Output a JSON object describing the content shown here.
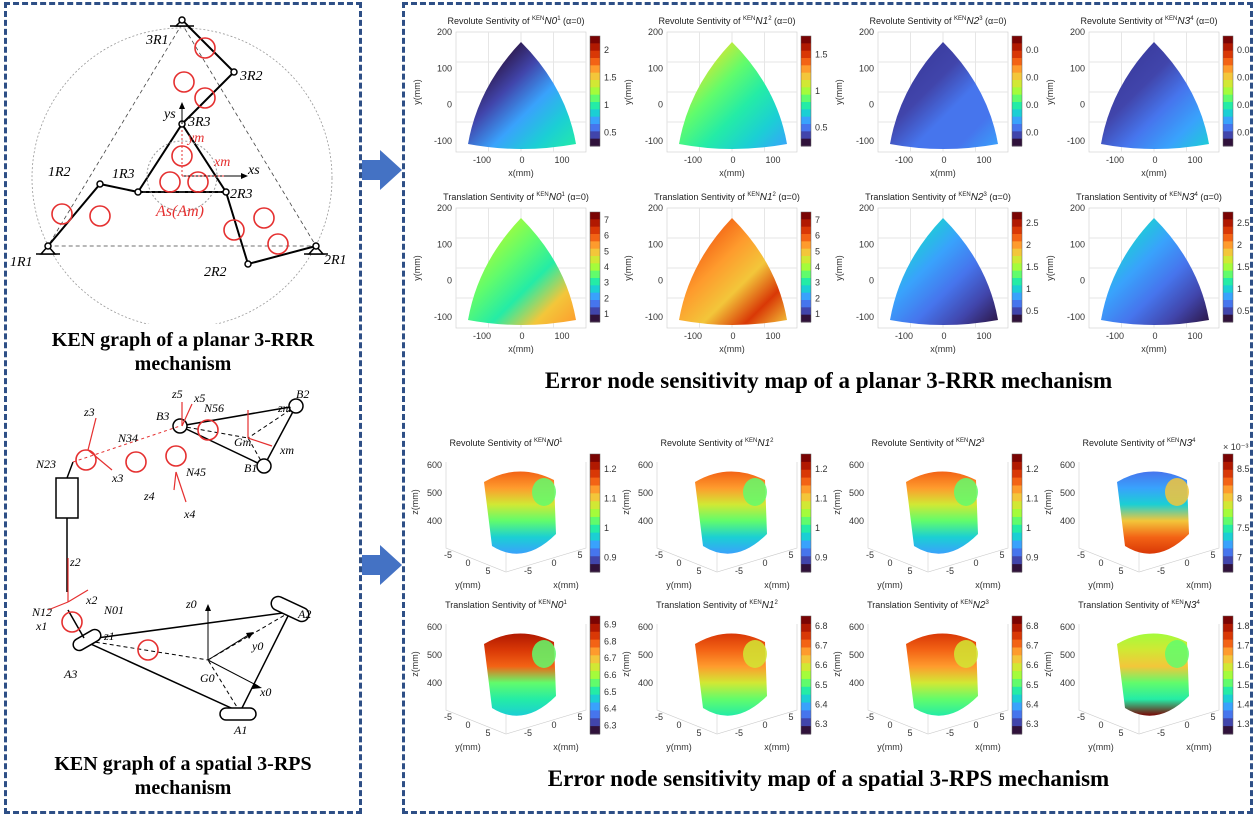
{
  "captions": {
    "left_top": "KEN graph of a planar 3-RRR mechanism",
    "left_bottom": "KEN graph of a spatial 3-RPS mechanism",
    "right_top": "Error node sensitivity map of a planar 3-RRR mechanism",
    "right_bottom": "Error node sensitivity map of a spatial 3-RPS mechanism"
  },
  "colors": {
    "border": "#2e4f86",
    "arrow": "#4472c4",
    "node": "#e53030",
    "dark": "#2b1442",
    "red": "#8b1010"
  },
  "planar_labels": {
    "R3_top": "3R1",
    "R2_top": "3R2",
    "R3_mid": "3R3",
    "R1_left": "1R1",
    "R2_left": "1R2",
    "R3_left": "1R3",
    "R1_right": "2R1",
    "R2_right": "2R2",
    "R3_right": "2R3",
    "ys": "ys",
    "xs": "xs",
    "ym": "ym",
    "xm": "xm",
    "origin": "As(Am)"
  },
  "spatial_labels": {
    "B1": "B1",
    "B2": "B2",
    "B3": "B3",
    "Gm": "Gm",
    "A1": "A1",
    "A2": "A2",
    "A3": "A3",
    "G0": "G0",
    "z0": "z0",
    "y0": "y0",
    "x0": "x0",
    "z1": "z1",
    "x1": "x1",
    "x2": "x2",
    "z2": "z2",
    "z3": "z3",
    "x3": "x3",
    "z4": "z4",
    "x4": "x4",
    "z5": "z5",
    "x5": "x5",
    "zm": "zm",
    "xm": "xm",
    "N1": "N01",
    "N2": "N12",
    "N3": "N23",
    "N4": "N34",
    "N5": "N45",
    "N6": "N56"
  },
  "planar_maps": [
    {
      "title": "Revolute Sentivity of",
      "node": "N0",
      "sup": "1",
      "suffix": "(α=0)",
      "cbar": [
        "2",
        "1.5",
        "1",
        "0.5"
      ],
      "scheme": "r1"
    },
    {
      "title": "Revolute Sentivity of",
      "node": "N1",
      "sup": "2",
      "suffix": "(α=0)",
      "cbar": [
        "1.5",
        "1",
        "0.5"
      ],
      "scheme": "r2"
    },
    {
      "title": "Revolute Sentivity of",
      "node": "N2",
      "sup": "3",
      "suffix": "(α=0)",
      "cbar": [
        "0.04",
        "0.03",
        "0.02",
        "0.01"
      ],
      "scheme": "r3"
    },
    {
      "title": "Revolute Sentivity of",
      "node": "N3",
      "sup": "4",
      "suffix": "(α=0)",
      "cbar": [
        "0.04",
        "0.03",
        "0.02",
        "0.01"
      ],
      "scheme": "r4"
    },
    {
      "title": "Translation Sentivity of",
      "node": "N0",
      "sup": "1",
      "suffix": "(α=0)",
      "cbar": [
        "7",
        "6",
        "5",
        "4",
        "3",
        "2",
        "1"
      ],
      "scheme": "t1"
    },
    {
      "title": "Translation Sentivity of",
      "node": "N1",
      "sup": "2",
      "suffix": "(α=0)",
      "cbar": [
        "7",
        "6",
        "5",
        "4",
        "3",
        "2",
        "1"
      ],
      "scheme": "t2"
    },
    {
      "title": "Translation Sentivity of",
      "node": "N2",
      "sup": "3",
      "suffix": "(α=0)",
      "cbar": [
        "2.5",
        "2",
        "1.5",
        "1",
        "0.5"
      ],
      "scheme": "t3"
    },
    {
      "title": "Translation Sentivity of",
      "node": "N3",
      "sup": "4",
      "suffix": "(α=0)",
      "cbar": [
        "2.5",
        "2",
        "1.5",
        "1",
        "0.5"
      ],
      "scheme": "t3"
    }
  ],
  "planar_axes": {
    "xlabel": "x(mm)",
    "ylabel": "y(mm)",
    "yticks": [
      "200",
      "100",
      "0",
      "-100"
    ],
    "xticks": [
      "-100",
      "0",
      "100"
    ]
  },
  "spatial_maps": [
    {
      "title": "Revolute Sentivity of",
      "node": "N0",
      "sup": "1",
      "cbar": [
        "1.2",
        "1.1",
        "1",
        "0.9"
      ],
      "scheme": "s1"
    },
    {
      "title": "Revolute Sentivity of",
      "node": "N1",
      "sup": "2",
      "cbar": [
        "1.2",
        "1.1",
        "1",
        "0.9"
      ],
      "scheme": "s1"
    },
    {
      "title": "Revolute Sentivity of",
      "node": "N2",
      "sup": "3",
      "cbar": [
        "1.2",
        "1.1",
        "1",
        "0.9"
      ],
      "scheme": "s1"
    },
    {
      "title": "Revolute Sentivity of",
      "node": "N3",
      "sup": "4",
      "cbar": [
        "8.5",
        "8",
        "7.5",
        "7"
      ],
      "scheme": "s4",
      "exp": "× 10⁻³"
    },
    {
      "title": "Translation Sentivity of",
      "node": "N0",
      "sup": "1",
      "cbar": [
        "6.9",
        "6.8",
        "6.7",
        "6.6",
        "6.5",
        "6.4",
        "6.3"
      ],
      "scheme": "s5"
    },
    {
      "title": "Translation Sentivity of",
      "node": "N1",
      "sup": "2",
      "cbar": [
        "6.8",
        "6.7",
        "6.6",
        "6.5",
        "6.4",
        "6.3"
      ],
      "scheme": "s6"
    },
    {
      "title": "Translation Sentivity of",
      "node": "N2",
      "sup": "3",
      "cbar": [
        "6.8",
        "6.7",
        "6.6",
        "6.5",
        "6.4",
        "6.3"
      ],
      "scheme": "s6"
    },
    {
      "title": "Translation Sentivity of",
      "node": "N3",
      "sup": "4",
      "cbar": [
        "1.8",
        "1.7",
        "1.6",
        "1.5",
        "1.4",
        "1.3"
      ],
      "scheme": "s8"
    }
  ],
  "spatial_axes": {
    "zlabel": "z(mm)",
    "ylabel": "y(mm)",
    "xlabel": "x(mm)",
    "zticks": [
      "600",
      "500",
      "400"
    ],
    "yticks": [
      "-5",
      "0",
      "5"
    ],
    "xticks": [
      "-5",
      "0",
      "5"
    ]
  }
}
